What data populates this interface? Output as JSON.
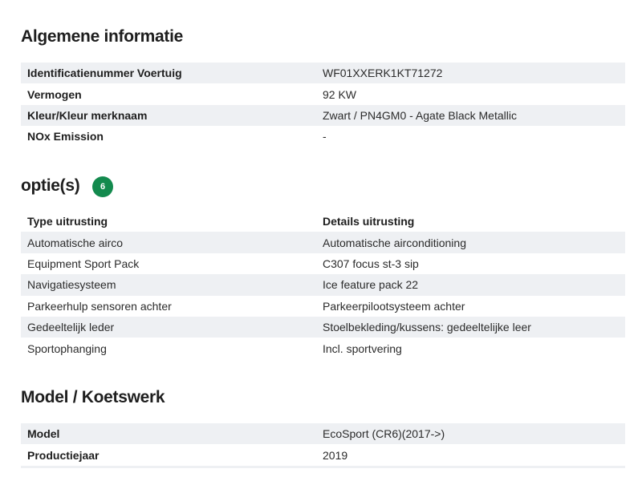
{
  "general": {
    "title": "Algemene informatie",
    "rows": [
      {
        "label": "Identificatienummer Voertuig",
        "value": "WF01XXERK1KT71272"
      },
      {
        "label": "Vermogen",
        "value": "92 KW"
      },
      {
        "label": "Kleur/Kleur merknaam",
        "value": "Zwart / PN4GM0 - Agate Black Metallic"
      },
      {
        "label": "NOx Emission",
        "value": "-"
      }
    ]
  },
  "options": {
    "title": "optie(s)",
    "count": "6",
    "badge_color": "#138a4e",
    "headers": [
      "Type uitrusting",
      "Details uitrusting"
    ],
    "rows": [
      {
        "type": "Automatische airco",
        "details": "Automatische airconditioning"
      },
      {
        "type": "Equipment Sport Pack",
        "details": "C307 focus st-3 sip"
      },
      {
        "type": "Navigatiesysteem",
        "details": "Ice feature pack 22"
      },
      {
        "type": "Parkeerhulp sensoren achter",
        "details": "Parkeerpilootsysteem achter"
      },
      {
        "type": "Gedeeltelijk leder",
        "details": "Stoelbekleding/kussens: gedeeltelijke leer"
      },
      {
        "type": "Sportophanging",
        "details": "Incl. sportvering"
      }
    ]
  },
  "model": {
    "title": "Model / Koetswerk",
    "rows": [
      {
        "label": "Model",
        "value": "EcoSport (CR6)(2017->)"
      },
      {
        "label": "Productiejaar",
        "value": "2019"
      }
    ]
  }
}
